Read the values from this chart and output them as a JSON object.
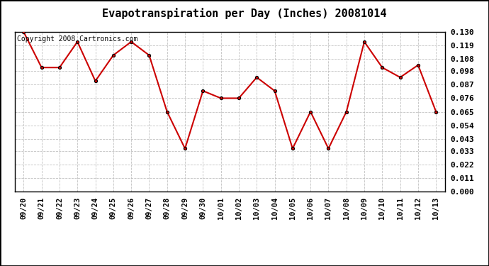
{
  "title": "Evapotranspiration per Day (Inches) 20081014",
  "copyright_text": "Copyright 2008 Cartronics.com",
  "dates": [
    "09/20",
    "09/21",
    "09/22",
    "09/23",
    "09/24",
    "09/25",
    "09/26",
    "09/27",
    "09/28",
    "09/29",
    "09/30",
    "10/01",
    "10/02",
    "10/03",
    "10/04",
    "10/05",
    "10/06",
    "10/07",
    "10/08",
    "10/09",
    "10/10",
    "10/11",
    "10/12",
    "10/13"
  ],
  "values": [
    0.13,
    0.101,
    0.101,
    0.122,
    0.09,
    0.111,
    0.122,
    0.111,
    0.065,
    0.035,
    0.082,
    0.076,
    0.076,
    0.093,
    0.082,
    0.035,
    0.065,
    0.035,
    0.065,
    0.122,
    0.101,
    0.093,
    0.103,
    0.065
  ],
  "line_color": "#cc0000",
  "marker": "o",
  "marker_size": 3,
  "marker_facecolor": "#cc0000",
  "marker_edgecolor": "#000000",
  "background_color": "#ffffff",
  "grid_color": "#bbbbbb",
  "ylim": [
    0.0,
    0.13
  ],
  "yticks": [
    0.0,
    0.011,
    0.022,
    0.033,
    0.043,
    0.054,
    0.065,
    0.076,
    0.087,
    0.098,
    0.108,
    0.119,
    0.13
  ],
  "title_fontsize": 11,
  "copyright_fontsize": 7,
  "tick_fontsize": 7.5,
  "ytick_fontsize": 8
}
